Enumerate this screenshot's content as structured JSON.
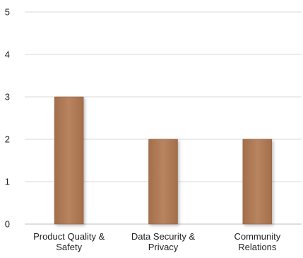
{
  "chart_data": {
    "type": "bar",
    "categories": [
      [
        "Product Quality &",
        "Safety"
      ],
      [
        "Data Security &",
        "Privacy"
      ],
      [
        "Community",
        "Relations"
      ]
    ],
    "values": [
      3,
      2,
      2
    ],
    "ylim": [
      0,
      5
    ],
    "yticks": [
      "0",
      "1",
      "2",
      "3",
      "4",
      "5"
    ],
    "grid": true,
    "legend": "none",
    "colors": {
      "bar": "#b07a56",
      "bar_edge": "#8f5c3c",
      "grid": "#d9d9d9",
      "text": "#222222"
    }
  }
}
